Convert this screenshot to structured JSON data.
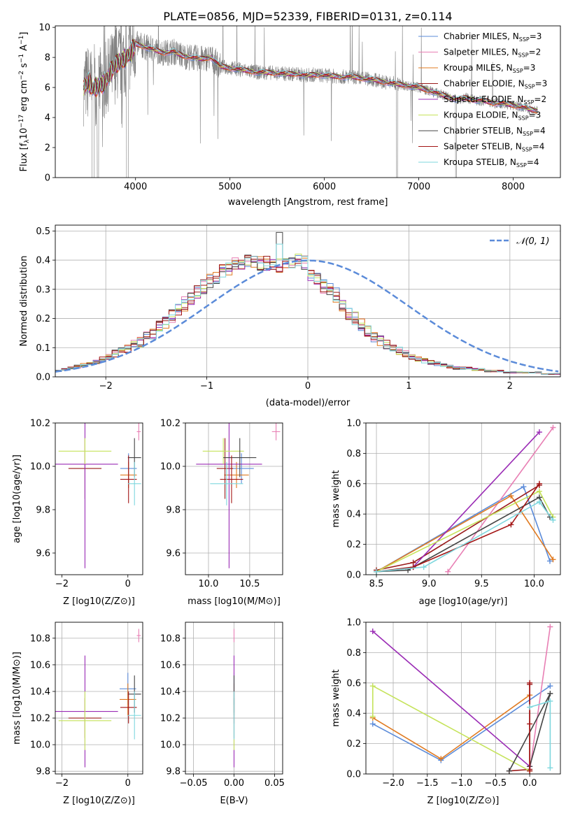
{
  "figure": {
    "title": "PLATE=0856, MJD=52339, FIBERID=0131, z=0.114"
  },
  "colors": {
    "Chabrier MILES": "#5b8bd9",
    "Salpeter MILES": "#e87fb4",
    "Kroupa MILES": "#e07b22",
    "Chabrier ELODIE": "#9a1b1b",
    "Salpeter ELODIE": "#9a2bb5",
    "Kroupa ELODIE": "#c5e35a",
    "Chabrier STELIB": "#444444",
    "Salpeter STELIB": "#a31515",
    "Kroupa STELIB": "#7ed7de",
    "data": "#808080",
    "gaussian": "#5b8bd9"
  },
  "chart_data": [
    {
      "id": "spectrum",
      "type": "line",
      "title": "PLATE=0856, MJD=52339, FIBERID=0131, z=0.114",
      "xlabel": "wavelength [Angstrom, rest frame]",
      "ylabel": "Flux [f_λ 10^-17 erg cm^-2 s^-1 A^-1]",
      "xlim": [
        3150,
        8500
      ],
      "ylim": [
        0,
        10.1
      ],
      "xticks": [
        4000,
        5000,
        6000,
        7000,
        8000
      ],
      "yticks": [
        0,
        2,
        4,
        6,
        8,
        10
      ],
      "legend_position": "top-right",
      "legend": [
        {
          "name": "Chabrier MILES",
          "sub": "SSP",
          "n": "3"
        },
        {
          "name": "Salpeter MILES",
          "sub": "SSP",
          "n": "2"
        },
        {
          "name": "Kroupa MILES",
          "sub": "SSP",
          "n": "3"
        },
        {
          "name": "Chabrier ELODIE",
          "sub": "SSP",
          "n": "3"
        },
        {
          "name": "Salpeter ELODIE",
          "sub": "SSP",
          "n": "2"
        },
        {
          "name": "Kroupa ELODIE",
          "sub": "SSP",
          "n": "3"
        },
        {
          "name": "Chabrier STELIB",
          "sub": "SSP",
          "n": "4"
        },
        {
          "name": "Salpeter STELIB",
          "sub": "SSP",
          "n": "4"
        },
        {
          "name": "Kroupa STELIB",
          "sub": "SSP",
          "n": "4"
        }
      ],
      "model_continuum": [
        [
          3450,
          6.0
        ],
        [
          3500,
          6.4
        ],
        [
          3550,
          5.9
        ],
        [
          3600,
          6.1
        ],
        [
          3650,
          6.2
        ],
        [
          3700,
          6.6
        ],
        [
          3750,
          7.2
        ],
        [
          3800,
          7.6
        ],
        [
          3850,
          7.8
        ],
        [
          3900,
          8.0
        ],
        [
          3950,
          8.3
        ],
        [
          4000,
          8.9
        ],
        [
          4100,
          8.7
        ],
        [
          4200,
          8.5
        ],
        [
          4300,
          8.3
        ],
        [
          4400,
          8.4
        ],
        [
          4500,
          8.1
        ],
        [
          4600,
          8.0
        ],
        [
          4700,
          7.9
        ],
        [
          4800,
          8.0
        ],
        [
          4900,
          7.4
        ],
        [
          5000,
          7.3
        ],
        [
          5100,
          7.2
        ],
        [
          5200,
          7.1
        ],
        [
          5300,
          7.0
        ],
        [
          5400,
          7.0
        ],
        [
          5500,
          6.95
        ],
        [
          5600,
          6.9
        ],
        [
          5700,
          6.9
        ],
        [
          5800,
          6.8
        ],
        [
          5900,
          6.85
        ],
        [
          6000,
          6.8
        ],
        [
          6100,
          6.75
        ],
        [
          6200,
          6.7
        ],
        [
          6300,
          6.7
        ],
        [
          6400,
          6.6
        ],
        [
          6500,
          6.55
        ],
        [
          6600,
          6.4
        ],
        [
          6700,
          6.3
        ],
        [
          6800,
          6.2
        ],
        [
          6900,
          6.1
        ],
        [
          7000,
          6.0
        ],
        [
          7100,
          5.8
        ],
        [
          7200,
          5.6
        ],
        [
          7300,
          5.4
        ],
        [
          7400,
          5.2
        ],
        [
          7500,
          5.3
        ],
        [
          7600,
          5.15
        ],
        [
          7700,
          5.1
        ],
        [
          7800,
          4.95
        ],
        [
          7900,
          4.95
        ],
        [
          8000,
          4.8
        ],
        [
          8100,
          4.7
        ],
        [
          8200,
          4.5
        ],
        [
          8260,
          4.45
        ]
      ],
      "data_range": [
        3450,
        8260
      ]
    },
    {
      "id": "residuals",
      "type": "histogram",
      "xlabel": "(data-model)/error",
      "ylabel": "Normed distribution",
      "xlim": [
        -2.5,
        2.5
      ],
      "ylim": [
        0,
        0.52
      ],
      "xticks": [
        -2,
        -1,
        0,
        1,
        2
      ],
      "yticks": [
        0.0,
        0.1,
        0.2,
        0.3,
        0.4,
        0.5
      ],
      "legend_position": "top-right",
      "legend": [
        {
          "name": "𝒩(0, 1)"
        }
      ],
      "bin_width": 0.1,
      "bin_start": -2.5,
      "envelope": [
        0.02,
        0.025,
        0.03,
        0.035,
        0.04,
        0.045,
        0.05,
        0.06,
        0.07,
        0.08,
        0.09,
        0.095,
        0.11,
        0.12,
        0.135,
        0.15,
        0.17,
        0.19,
        0.21,
        0.23,
        0.25,
        0.27,
        0.29,
        0.31,
        0.33,
        0.34,
        0.36,
        0.37,
        0.385,
        0.39,
        0.4,
        0.4,
        0.39,
        0.39,
        0.39,
        0.38,
        0.385,
        0.39,
        0.4,
        0.39,
        0.35,
        0.33,
        0.31,
        0.3,
        0.28,
        0.25,
        0.22,
        0.2,
        0.18,
        0.16,
        0.14,
        0.125,
        0.11,
        0.1,
        0.09,
        0.08,
        0.07,
        0.06,
        0.055,
        0.05,
        0.045,
        0.04,
        0.035,
        0.03,
        0.03,
        0.03,
        0.025,
        0.025,
        0.02,
        0.02,
        0.02,
        0.015,
        0.015,
        0.015,
        0.015,
        0.015,
        0.015,
        0.01,
        0.01,
        0.01
      ]
    },
    {
      "id": "age-vs-Z",
      "type": "scatter",
      "xlabel": "Z [log10(Z/Z⊙)]",
      "ylabel": "age [log10(age/yr)]",
      "xlim": [
        -2.2,
        0.45
      ],
      "ylim": [
        9.5,
        10.2
      ],
      "xticks": [
        -2,
        0
      ],
      "yticks": [
        9.6,
        9.8,
        10.0,
        10.2
      ],
      "points": [
        {
          "model": "Chabrier MILES",
          "x": 0.02,
          "xerr": 0.25,
          "y": 9.99,
          "yerr": 0.07
        },
        {
          "model": "Salpeter MILES",
          "x": 0.33,
          "xerr": 0.06,
          "y": 10.16,
          "yerr": 0.04
        },
        {
          "model": "Kroupa MILES",
          "x": 0.02,
          "xerr": 0.25,
          "y": 9.96,
          "yerr": 0.06
        },
        {
          "model": "Chabrier ELODIE",
          "x": -1.3,
          "xerr": 0.5,
          "y": 9.99,
          "yerr": 0.14
        },
        {
          "model": "Salpeter ELODIE",
          "x": -1.3,
          "xerr": 1.0,
          "y": 10.01,
          "yerr": 0.48
        },
        {
          "model": "Kroupa ELODIE",
          "x": -1.3,
          "xerr": 0.8,
          "y": 10.07,
          "yerr": 0.06
        },
        {
          "model": "Chabrier STELIB",
          "x": 0.2,
          "xerr": 0.2,
          "y": 10.04,
          "yerr": 0.09
        },
        {
          "model": "Salpeter STELIB",
          "x": 0.02,
          "xerr": 0.25,
          "y": 9.94,
          "yerr": 0.11
        },
        {
          "model": "Kroupa STELIB",
          "x": 0.2,
          "xerr": 0.2,
          "y": 9.92,
          "yerr": 0.1
        }
      ]
    },
    {
      "id": "age-vs-mass",
      "type": "scatter",
      "xlabel": "mass [log10(M/M⊙)]",
      "ylabel": "",
      "xlim": [
        9.72,
        10.9
      ],
      "ylim": [
        9.5,
        10.2
      ],
      "xticks": [
        10.0,
        10.5
      ],
      "yticks": [
        9.6,
        9.8,
        10.0,
        10.2
      ],
      "points": [
        {
          "model": "Chabrier MILES",
          "x": 10.4,
          "xerr": 0.15,
          "y": 9.99,
          "yerr": 0.07
        },
        {
          "model": "Salpeter MILES",
          "x": 10.82,
          "xerr": 0.05,
          "y": 10.16,
          "yerr": 0.04
        },
        {
          "model": "Kroupa MILES",
          "x": 10.34,
          "xerr": 0.15,
          "y": 9.96,
          "yerr": 0.06
        },
        {
          "model": "Chabrier ELODIE",
          "x": 10.2,
          "xerr": 0.1,
          "y": 9.99,
          "yerr": 0.14
        },
        {
          "model": "Salpeter ELODIE",
          "x": 10.25,
          "xerr": 0.4,
          "y": 10.01,
          "yerr": 0.48
        },
        {
          "model": "Kroupa ELODIE",
          "x": 10.18,
          "xerr": 0.25,
          "y": 10.07,
          "yerr": 0.06
        },
        {
          "model": "Chabrier STELIB",
          "x": 10.38,
          "xerr": 0.2,
          "y": 10.04,
          "yerr": 0.09
        },
        {
          "model": "Salpeter STELIB",
          "x": 10.28,
          "xerr": 0.14,
          "y": 9.94,
          "yerr": 0.11
        },
        {
          "model": "Kroupa STELIB",
          "x": 10.22,
          "xerr": 0.2,
          "y": 9.92,
          "yerr": 0.1
        }
      ]
    },
    {
      "id": "weight-vs-age",
      "type": "line",
      "xlabel": "age [log10(age/yr)]",
      "ylabel": "mass weight",
      "xlim": [
        8.4,
        10.25
      ],
      "ylim": [
        0,
        1.0
      ],
      "xticks": [
        8.5,
        9.0,
        9.5,
        10.0
      ],
      "yticks": [
        0.0,
        0.2,
        0.4,
        0.6,
        0.8,
        1.0
      ],
      "series": [
        {
          "model": "Chabrier MILES",
          "x": [
            8.5,
            9.9,
            10.15
          ],
          "y": [
            0.02,
            0.58,
            0.09
          ]
        },
        {
          "model": "Salpeter MILES",
          "x": [
            9.18,
            10.18
          ],
          "y": [
            0.02,
            0.97
          ]
        },
        {
          "model": "Kroupa MILES",
          "x": [
            8.5,
            9.78,
            10.18
          ],
          "y": [
            0.02,
            0.52,
            0.1
          ]
        },
        {
          "model": "Chabrier ELODIE",
          "x": [
            8.5,
            8.85,
            10.05
          ],
          "y": [
            0.03,
            0.08,
            0.59
          ]
        },
        {
          "model": "Salpeter ELODIE",
          "x": [
            8.85,
            10.05
          ],
          "y": [
            0.05,
            0.94
          ]
        },
        {
          "model": "Kroupa ELODIE",
          "x": [
            8.5,
            10.05,
            10.18
          ],
          "y": [
            0.02,
            0.55,
            0.38
          ]
        },
        {
          "model": "Chabrier STELIB",
          "x": [
            8.5,
            8.8,
            10.05,
            10.15
          ],
          "y": [
            0.02,
            0.03,
            0.51,
            0.38
          ]
        },
        {
          "model": "Salpeter STELIB",
          "x": [
            8.5,
            8.85,
            9.78,
            10.05
          ],
          "y": [
            0.02,
            0.05,
            0.33,
            0.6
          ]
        },
        {
          "model": "Kroupa STELIB",
          "x": [
            8.5,
            8.95,
            10.05,
            10.18
          ],
          "y": [
            0.02,
            0.05,
            0.48,
            0.36
          ]
        }
      ]
    },
    {
      "id": "mass-vs-Z",
      "type": "scatter",
      "xlabel": "Z [log10(Z/Z⊙)]",
      "ylabel": "mass [log10(M/M⊙)]",
      "xlim": [
        -2.2,
        0.45
      ],
      "ylim": [
        9.78,
        10.92
      ],
      "xticks": [
        -2,
        0
      ],
      "yticks": [
        9.8,
        10.0,
        10.2,
        10.4,
        10.6,
        10.8
      ],
      "points": [
        {
          "model": "Chabrier MILES",
          "x": 0.0,
          "xerr": 0.25,
          "y": 10.42,
          "yerr": 0.12
        },
        {
          "model": "Salpeter MILES",
          "x": 0.33,
          "xerr": 0.06,
          "y": 10.82,
          "yerr": 0.05
        },
        {
          "model": "Kroupa MILES",
          "x": 0.0,
          "xerr": 0.25,
          "y": 10.34,
          "yerr": 0.12
        },
        {
          "model": "Chabrier ELODIE",
          "x": -1.3,
          "xerr": 0.5,
          "y": 10.2,
          "yerr": 0.15
        },
        {
          "model": "Salpeter ELODIE",
          "x": -1.3,
          "xerr": 1.0,
          "y": 10.25,
          "yerr": 0.42
        },
        {
          "model": "Kroupa ELODIE",
          "x": -1.3,
          "xerr": 0.8,
          "y": 10.18,
          "yerr": 0.22
        },
        {
          "model": "Chabrier STELIB",
          "x": 0.2,
          "xerr": 0.2,
          "y": 10.38,
          "yerr": 0.14
        },
        {
          "model": "Salpeter STELIB",
          "x": 0.02,
          "xerr": 0.25,
          "y": 10.28,
          "yerr": 0.12
        },
        {
          "model": "Kroupa STELIB",
          "x": 0.2,
          "xerr": 0.2,
          "y": 10.22,
          "yerr": 0.18
        }
      ]
    },
    {
      "id": "mass-vs-EBV",
      "type": "scatter",
      "xlabel": "E(B-V)",
      "ylabel": "",
      "xlim": [
        -0.06,
        0.06
      ],
      "ylim": [
        9.78,
        10.92
      ],
      "xticks": [
        -0.05,
        0.0,
        0.05
      ],
      "xtick_labels": [
        "−0.05",
        "0.00",
        "0.05"
      ],
      "yticks": [
        9.8,
        10.0,
        10.2,
        10.4,
        10.6,
        10.8
      ],
      "points": [
        {
          "model": "Chabrier MILES",
          "x": 0.0,
          "y": 10.42,
          "yerr": 0.12
        },
        {
          "model": "Salpeter MILES",
          "x": 0.0,
          "y": 10.82,
          "yerr": 0.05
        },
        {
          "model": "Kroupa MILES",
          "x": 0.0,
          "y": 10.34,
          "yerr": 0.12
        },
        {
          "model": "Chabrier ELODIE",
          "x": 0.0,
          "y": 10.2,
          "yerr": 0.15
        },
        {
          "model": "Salpeter ELODIE",
          "x": 0.0,
          "y": 10.25,
          "yerr": 0.42
        },
        {
          "model": "Kroupa ELODIE",
          "x": 0.0,
          "y": 10.18,
          "yerr": 0.22
        },
        {
          "model": "Chabrier STELIB",
          "x": 0.0,
          "y": 10.38,
          "yerr": 0.14
        },
        {
          "model": "Salpeter STELIB",
          "x": 0.0,
          "y": 10.28,
          "yerr": 0.12
        },
        {
          "model": "Kroupa STELIB",
          "x": 0.0,
          "y": 10.22,
          "yerr": 0.18
        }
      ]
    },
    {
      "id": "weight-vs-Z",
      "type": "line",
      "xlabel": "Z [log10(Z/Z⊙)]",
      "ylabel": "mass weight",
      "xlim": [
        -2.4,
        0.45
      ],
      "ylim": [
        0,
        1.0
      ],
      "xticks": [
        -2.0,
        -1.5,
        -1.0,
        -0.5,
        0.0
      ],
      "yticks": [
        0.0,
        0.2,
        0.4,
        0.6,
        0.8,
        1.0
      ],
      "series": [
        {
          "model": "Chabrier MILES",
          "x": [
            -2.3,
            -1.3,
            0.3
          ],
          "y": [
            0.33,
            0.09,
            0.58
          ]
        },
        {
          "model": "Salpeter MILES",
          "x": [
            0.0,
            0.3
          ],
          "y": [
            0.02,
            0.97
          ]
        },
        {
          "model": "Kroupa MILES",
          "x": [
            -2.3,
            -1.3,
            0.0
          ],
          "y": [
            0.37,
            0.1,
            0.52
          ]
        },
        {
          "model": "Chabrier ELODIE",
          "x": [
            0.0,
            0.0,
            -0.3
          ],
          "y": [
            0.59,
            0.03,
            0.02
          ]
        },
        {
          "model": "Salpeter ELODIE",
          "x": [
            -2.3,
            0.0
          ],
          "y": [
            0.94,
            0.05
          ]
        },
        {
          "model": "Kroupa ELODIE",
          "x": [
            -2.3,
            -2.3,
            0.0
          ],
          "y": [
            0.38,
            0.58,
            0.02
          ]
        },
        {
          "model": "Chabrier STELIB",
          "x": [
            -0.3,
            0.3,
            0.0
          ],
          "y": [
            0.02,
            0.53,
            0.05
          ]
        },
        {
          "model": "Salpeter STELIB",
          "x": [
            0.0,
            0.0,
            0.0
          ],
          "y": [
            0.02,
            0.33,
            0.6
          ]
        },
        {
          "model": "Kroupa STELIB",
          "x": [
            0.0,
            0.3,
            0.3
          ],
          "y": [
            0.44,
            0.48,
            0.04
          ]
        }
      ]
    }
  ]
}
